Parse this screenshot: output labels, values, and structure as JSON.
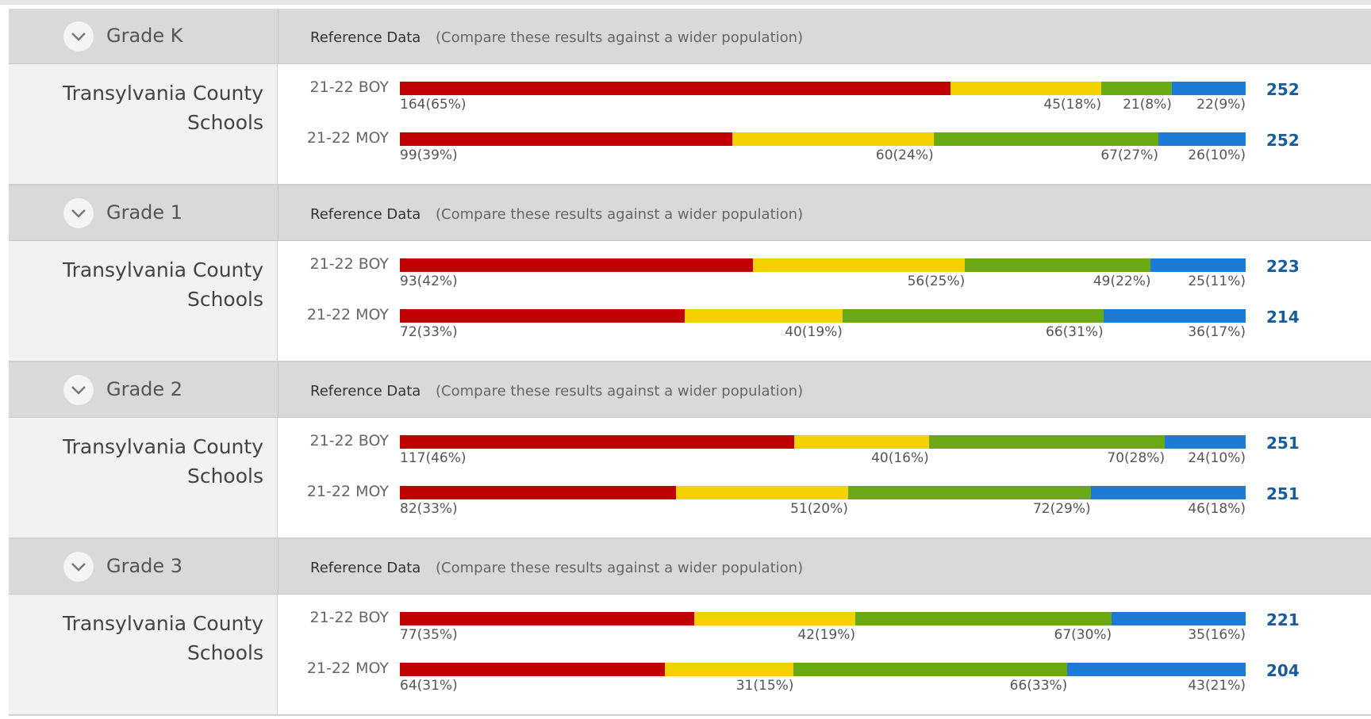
{
  "segment_colors": [
    "#c00000",
    "#f2d300",
    "#6aa913",
    "#1b7bd6"
  ],
  "sections": [
    {
      "grade": "Grade K",
      "reference_title": "Reference Data",
      "reference_note": "(Compare these results against a wider population)",
      "school": "Transylvania County Schools",
      "rows": [
        {
          "period": "21-22 BOY",
          "total": 252,
          "segments": [
            {
              "count": 164,
              "label": "164(65%)"
            },
            {
              "count": 45,
              "label": "45(18%)"
            },
            {
              "count": 21,
              "label": "21(8%)"
            },
            {
              "count": 22,
              "label": "22(9%)"
            }
          ]
        },
        {
          "period": "21-22 MOY",
          "total": 252,
          "segments": [
            {
              "count": 99,
              "label": "99(39%)"
            },
            {
              "count": 60,
              "label": "60(24%)"
            },
            {
              "count": 67,
              "label": "67(27%)"
            },
            {
              "count": 26,
              "label": "26(10%)"
            }
          ]
        }
      ]
    },
    {
      "grade": "Grade 1",
      "reference_title": "Reference Data",
      "reference_note": "(Compare these results against a wider population)",
      "school": "Transylvania County Schools",
      "rows": [
        {
          "period": "21-22 BOY",
          "total": 223,
          "segments": [
            {
              "count": 93,
              "label": "93(42%)"
            },
            {
              "count": 56,
              "label": "56(25%)"
            },
            {
              "count": 49,
              "label": "49(22%)"
            },
            {
              "count": 25,
              "label": "25(11%)"
            }
          ]
        },
        {
          "period": "21-22 MOY",
          "total": 214,
          "segments": [
            {
              "count": 72,
              "label": "72(33%)"
            },
            {
              "count": 40,
              "label": "40(19%)"
            },
            {
              "count": 66,
              "label": "66(31%)"
            },
            {
              "count": 36,
              "label": "36(17%)"
            }
          ]
        }
      ]
    },
    {
      "grade": "Grade 2",
      "reference_title": "Reference Data",
      "reference_note": "(Compare these results against a wider population)",
      "school": "Transylvania County Schools",
      "rows": [
        {
          "period": "21-22 BOY",
          "total": 251,
          "segments": [
            {
              "count": 117,
              "label": "117(46%)"
            },
            {
              "count": 40,
              "label": "40(16%)"
            },
            {
              "count": 70,
              "label": "70(28%)"
            },
            {
              "count": 24,
              "label": "24(10%)"
            }
          ]
        },
        {
          "period": "21-22 MOY",
          "total": 251,
          "segments": [
            {
              "count": 82,
              "label": "82(33%)"
            },
            {
              "count": 51,
              "label": "51(20%)"
            },
            {
              "count": 72,
              "label": "72(29%)"
            },
            {
              "count": 46,
              "label": "46(18%)"
            }
          ]
        }
      ]
    },
    {
      "grade": "Grade 3",
      "reference_title": "Reference Data",
      "reference_note": "(Compare these results against a wider population)",
      "school": "Transylvania County Schools",
      "rows": [
        {
          "period": "21-22 BOY",
          "total": 221,
          "segments": [
            {
              "count": 77,
              "label": "77(35%)"
            },
            {
              "count": 42,
              "label": "42(19%)"
            },
            {
              "count": 67,
              "label": "67(30%)"
            },
            {
              "count": 35,
              "label": "35(16%)"
            }
          ]
        },
        {
          "period": "21-22 MOY",
          "total": 204,
          "segments": [
            {
              "count": 64,
              "label": "64(31%)"
            },
            {
              "count": 31,
              "label": "31(15%)"
            },
            {
              "count": 66,
              "label": "66(33%)"
            },
            {
              "count": 43,
              "label": "43(21%)"
            }
          ]
        }
      ]
    }
  ]
}
